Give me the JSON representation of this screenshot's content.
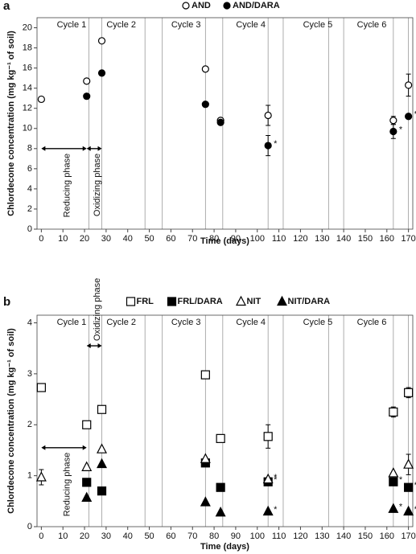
{
  "chart_data": [
    {
      "type": "scatter",
      "panel": "a",
      "x_label": "Time (days)",
      "y_label": "Chlordecone concentration (mg kg⁻¹ of soil)",
      "x": [
        0,
        21,
        28,
        76,
        83,
        105,
        163,
        170
      ],
      "xlim": [
        -2,
        172
      ],
      "xticks": [
        0,
        10,
        20,
        30,
        40,
        50,
        60,
        70,
        80,
        90,
        100,
        110,
        120,
        130,
        140,
        150,
        160,
        170
      ],
      "ylim": [
        0,
        21
      ],
      "yticks": [
        0,
        2,
        4,
        6,
        8,
        10,
        12,
        14,
        16,
        18,
        20
      ],
      "vlines": [
        22,
        28,
        48,
        56,
        76,
        84,
        105,
        112,
        133,
        140,
        163,
        170
      ],
      "annotations": [
        {
          "text": "Cycle 1",
          "x": 14
        },
        {
          "text": "Cycle 2",
          "x": 37
        },
        {
          "text": "Cycle 3",
          "x": 67
        },
        {
          "text": "Cycle 4",
          "x": 97
        },
        {
          "text": "Cycle 5",
          "x": 128
        },
        {
          "text": "Cycle 6",
          "x": 153
        }
      ],
      "phases": [
        {
          "label": "Reducing phase",
          "from": 0,
          "to": 21,
          "y": 8
        },
        {
          "label": "Oxidizing phase",
          "from": 21,
          "to": 28,
          "y": 8
        }
      ],
      "series": [
        {
          "name": "AND",
          "color": "#000000",
          "marker": "circle",
          "filled": false,
          "values": [
            12.9,
            14.7,
            18.7,
            15.9,
            10.8,
            11.3,
            10.8,
            14.3
          ],
          "errors": [
            null,
            null,
            null,
            null,
            null,
            1.0,
            0.4,
            1.1
          ],
          "significance": [
            null,
            null,
            null,
            null,
            null,
            null,
            null,
            null
          ]
        },
        {
          "name": "AND/DARA",
          "color": "#000000",
          "marker": "circle",
          "filled": true,
          "values": [
            null,
            13.2,
            15.5,
            12.4,
            10.6,
            8.3,
            9.7,
            11.2
          ],
          "errors": [
            null,
            null,
            null,
            null,
            null,
            1.0,
            0.7,
            null
          ],
          "significance": [
            null,
            null,
            null,
            null,
            null,
            "*",
            "*",
            "*"
          ]
        }
      ]
    },
    {
      "type": "scatter",
      "panel": "b",
      "x_label": "Time (days)",
      "y_label": "Chlordecone concentration (mg kg⁻¹ of soil)",
      "x": [
        0,
        21,
        28,
        76,
        83,
        105,
        163,
        170
      ],
      "xlim": [
        -2,
        172
      ],
      "xticks": [
        0,
        10,
        20,
        30,
        40,
        50,
        60,
        70,
        80,
        90,
        100,
        110,
        120,
        130,
        140,
        150,
        160,
        170
      ],
      "ylim": [
        0,
        4.15
      ],
      "yticks": [
        0,
        1,
        2,
        3,
        4
      ],
      "vlines": [
        22,
        28,
        48,
        56,
        76,
        84,
        105,
        112,
        133,
        140,
        163,
        170
      ],
      "annotations": [
        {
          "text": "Cycle 1",
          "x": 14
        },
        {
          "text": "Cycle 2",
          "x": 37
        },
        {
          "text": "Cycle 3",
          "x": 67
        },
        {
          "text": "Cycle 4",
          "x": 97
        },
        {
          "text": "Cycle 5",
          "x": 128
        },
        {
          "text": "Cycle 6",
          "x": 153
        }
      ],
      "phases": [
        {
          "label": "Reducing phase",
          "from": 0,
          "to": 21,
          "y": 1.55
        },
        {
          "label": "Oxidizing phase",
          "from": 21,
          "to": 28,
          "y": 3.55
        }
      ],
      "series": [
        {
          "name": "FRL",
          "color": "#000000",
          "marker": "square",
          "filled": false,
          "values": [
            2.73,
            2.0,
            2.3,
            2.98,
            1.73,
            1.77,
            2.25,
            2.63
          ],
          "errors": [
            null,
            null,
            null,
            null,
            null,
            0.23,
            0.1,
            0.1
          ],
          "significance": [
            null,
            null,
            null,
            null,
            null,
            null,
            null,
            null
          ]
        },
        {
          "name": "FRL/DARA",
          "color": "#000000",
          "marker": "square",
          "filled": true,
          "values": [
            null,
            0.87,
            0.7,
            1.25,
            0.77,
            0.88,
            0.88,
            0.77
          ],
          "errors": [
            null,
            null,
            null,
            null,
            null,
            null,
            null,
            null
          ],
          "significance": [
            null,
            null,
            null,
            null,
            null,
            "*",
            "*",
            "*"
          ]
        },
        {
          "name": "NIT",
          "color": "#000000",
          "marker": "triangle",
          "filled": false,
          "values": [
            0.97,
            1.17,
            1.52,
            1.33,
            null,
            0.93,
            1.05,
            1.22
          ],
          "errors": [
            0.15,
            null,
            null,
            null,
            null,
            null,
            null,
            0.2
          ],
          "significance": [
            null,
            null,
            null,
            null,
            null,
            "*",
            null,
            null
          ]
        },
        {
          "name": "NIT/DARA",
          "color": "#000000",
          "marker": "triangle",
          "filled": true,
          "values": [
            null,
            0.57,
            1.23,
            0.48,
            0.28,
            0.3,
            0.35,
            0.3
          ],
          "errors": [
            null,
            null,
            null,
            null,
            null,
            null,
            null,
            null
          ],
          "significance": [
            null,
            null,
            null,
            null,
            null,
            "*",
            "*",
            "*"
          ]
        }
      ]
    }
  ]
}
